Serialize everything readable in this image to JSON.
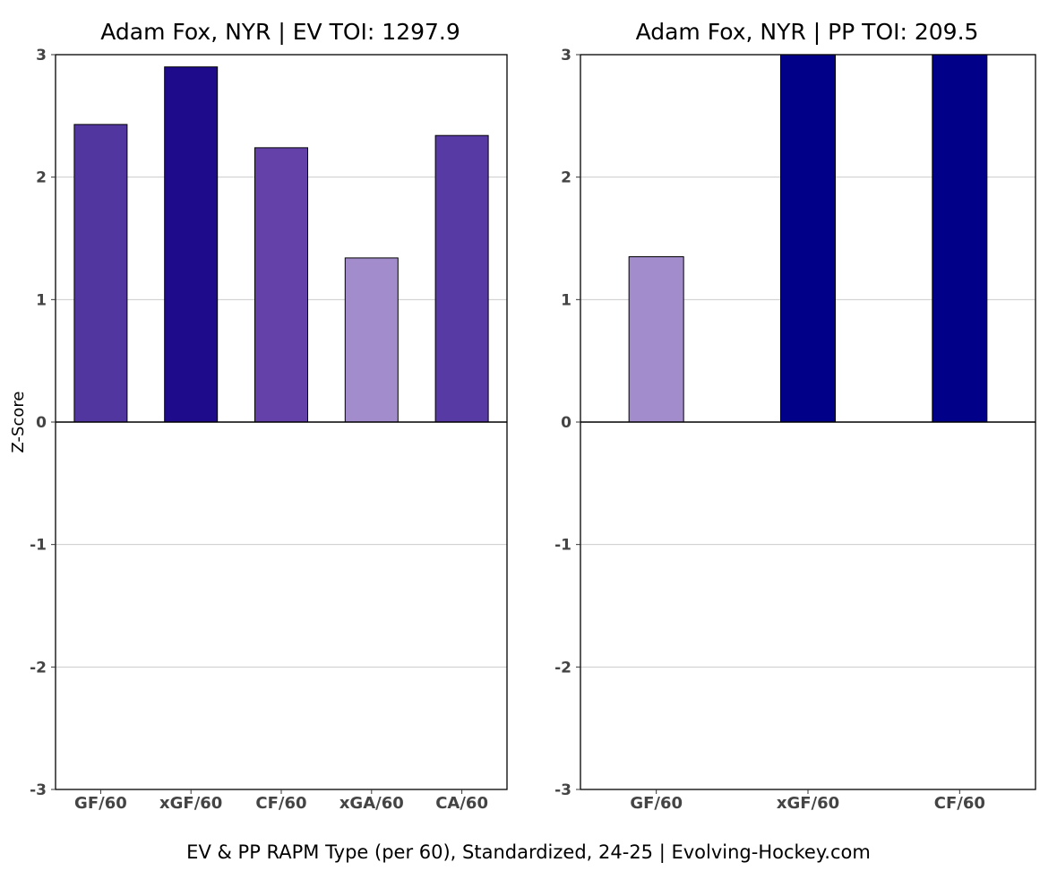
{
  "caption": "EV & PP RAPM Type (per 60), Standardized, 24-25    |    Evolving-Hockey.com",
  "chart_data": [
    {
      "type": "bar",
      "title": "Adam Fox, NYR  |  EV TOI: 1297.9",
      "ylabel": "Z-Score",
      "xlabel": "",
      "ylim": [
        -3,
        3
      ],
      "yticks": [
        -3,
        -2,
        -1,
        0,
        1,
        2,
        3
      ],
      "grid": true,
      "categories": [
        "GF/60",
        "xGF/60",
        "CF/60",
        "xGA/60",
        "CA/60"
      ],
      "values": [
        2.43,
        2.9,
        2.24,
        1.34,
        2.34
      ],
      "colors": [
        "#5236a0",
        "#1e0b8c",
        "#6341a8",
        "#a38ccc",
        "#573aa3"
      ]
    },
    {
      "type": "bar",
      "title": "Adam Fox, NYR  |  PP TOI: 209.5",
      "ylabel": "",
      "xlabel": "",
      "ylim": [
        -3,
        3
      ],
      "yticks": [
        -3,
        -2,
        -1,
        0,
        1,
        2,
        3
      ],
      "grid": true,
      "categories": [
        "GF/60",
        "xGF/60",
        "CF/60"
      ],
      "values": [
        1.35,
        3.0,
        3.0
      ],
      "colors": [
        "#a38ccc",
        "#000088",
        "#000088"
      ]
    }
  ]
}
